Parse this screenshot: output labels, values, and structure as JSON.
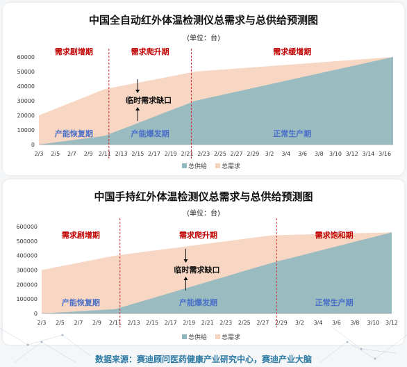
{
  "colors": {
    "supply": "#8fb8c0",
    "demand": "#f6d3bd",
    "phase_label": "#c00000",
    "stage_label": "#4a6fc8",
    "divider": "#d03030",
    "footer": "#2c7aa3"
  },
  "footer": {
    "source": "数据来源：赛迪顾问医药健康产业研究中心，赛迪产业大脑"
  },
  "chart_data": [
    {
      "type": "area",
      "title": "中国全自动红外体温检测仪总需求与总供给预测图",
      "unit": "(单位：台)",
      "ylim": [
        0,
        60000
      ],
      "yticks": [
        "0",
        "10000",
        "20000",
        "30000",
        "40000",
        "50000",
        "60000"
      ],
      "x": [
        "2/3",
        "2/4",
        "2/5",
        "2/6",
        "2/7",
        "2/8",
        "2/9",
        "2/10",
        "2/11",
        "2/12",
        "2/13",
        "2/14",
        "2/15",
        "2/16",
        "2/17",
        "2/18",
        "2/19",
        "2/20",
        "2/21",
        "2/22",
        "2/23",
        "2/24",
        "2/25",
        "2/26",
        "2/27",
        "2/28",
        "2/29",
        "3/1",
        "3/2",
        "3/3",
        "3/4",
        "3/5",
        "3/6",
        "3/7",
        "3/8",
        "3/9",
        "3/10",
        "3/11",
        "3/12",
        "3/13",
        "3/14",
        "3/15",
        "3/16",
        "3/17"
      ],
      "xticks": [
        "2/3",
        "2/5",
        "2/7",
        "2/9",
        "2/11",
        "2/13",
        "2/15",
        "2/17",
        "2/19",
        "2/21",
        "2/23",
        "2/25",
        "2/27",
        "2/29",
        "3/2",
        "3/4",
        "3/6",
        "3/8",
        "3/10",
        "3/12",
        "3/14",
        "3/16"
      ],
      "series": [
        {
          "name": "总供给",
          "anchors": [
            [
              0,
              0
            ],
            [
              8,
              6000
            ],
            [
              19,
              30000
            ],
            [
              43,
              60000
            ]
          ]
        },
        {
          "name": "总需求",
          "anchors": [
            [
              0,
              20000
            ],
            [
              8,
              38000
            ],
            [
              19,
              50000
            ],
            [
              43,
              60000
            ]
          ]
        }
      ],
      "dividers_after": [
        "2/11",
        "2/21"
      ],
      "phases": [
        "需求剧增期",
        "需求爬升期",
        "需求缓增期"
      ],
      "stages": [
        "产能恢复期",
        "产能爆发期",
        "正常生产期"
      ],
      "annotation": "临时需求缺口",
      "legend": [
        "总供给",
        "总需求"
      ],
      "legend_position": "bottom"
    },
    {
      "type": "area",
      "title": "中国手持红外体温检测仪总需求与总供给预测图",
      "unit": "(单位：台)",
      "ylim": [
        0,
        600000
      ],
      "yticks": [
        "0",
        "100000",
        "200000",
        "300000",
        "400000",
        "500000",
        "600000"
      ],
      "x": [
        "2/3",
        "2/4",
        "2/5",
        "2/6",
        "2/7",
        "2/8",
        "2/9",
        "2/10",
        "2/11",
        "2/12",
        "2/13",
        "2/14",
        "2/15",
        "2/16",
        "2/17",
        "2/18",
        "2/19",
        "2/20",
        "2/21",
        "2/22",
        "2/23",
        "2/24",
        "2/25",
        "2/26",
        "2/27",
        "2/28",
        "2/29",
        "3/1",
        "3/2",
        "3/3",
        "3/4",
        "3/5",
        "3/6",
        "3/7",
        "3/8",
        "3/9",
        "3/10",
        "3/11",
        "3/12"
      ],
      "xticks": [
        "2/3",
        "2/5",
        "2/7",
        "2/9",
        "2/11",
        "2/13",
        "2/15",
        "2/17",
        "2/19",
        "2/21",
        "2/23",
        "2/25",
        "2/27",
        "2/29",
        "3/2",
        "3/4",
        "3/6",
        "3/8",
        "3/10",
        "3/12"
      ],
      "series": [
        {
          "name": "总供给",
          "anchors": [
            [
              0,
              0
            ],
            [
              8,
              30000
            ],
            [
              25,
              350000
            ],
            [
              38,
              560000
            ]
          ]
        },
        {
          "name": "总需求",
          "anchors": [
            [
              0,
              300000
            ],
            [
              8,
              400000
            ],
            [
              25,
              540000
            ],
            [
              38,
              560000
            ]
          ]
        }
      ],
      "dividers_after": [
        "2/11",
        "2/28"
      ],
      "phases": [
        "需求剧增期",
        "需求爬升期",
        "需求饱和期"
      ],
      "stages": [
        "产能恢复期",
        "产能爆发期",
        "正常生产期"
      ],
      "annotation": "临时需求缺口",
      "legend": [
        "总供给",
        "总需求"
      ],
      "legend_position": "bottom"
    }
  ]
}
